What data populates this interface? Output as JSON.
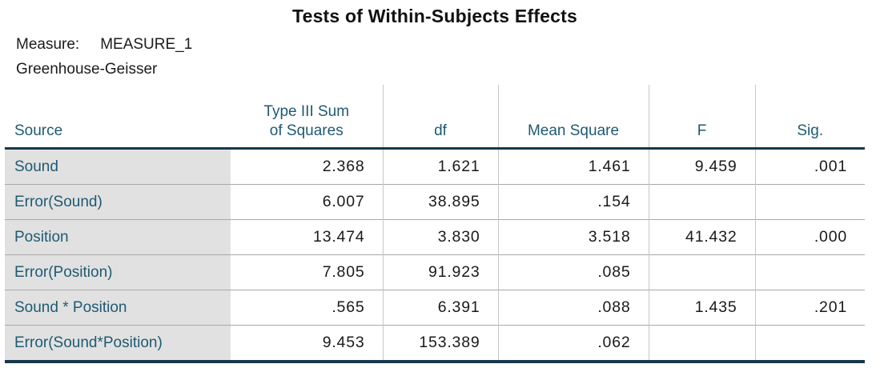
{
  "title": "Tests of Within-Subjects Effects",
  "measure": {
    "label": "Measure:",
    "value": "MEASURE_1"
  },
  "correction": "Greenhouse-Geisser",
  "table": {
    "header": {
      "source": "Source",
      "ss_line1": "Type III Sum",
      "ss_line2": "of Squares",
      "df": "df",
      "mean_square": "Mean Square",
      "f": "F",
      "sig": "Sig."
    },
    "rows": [
      {
        "source": "Sound",
        "ss": "2.368",
        "df": "1.621",
        "mean_square": "1.461",
        "f": "9.459",
        "sig": ".001"
      },
      {
        "source": "Error(Sound)",
        "ss": "6.007",
        "df": "38.895",
        "mean_square": ".154",
        "f": "",
        "sig": ""
      },
      {
        "source": "Position",
        "ss": "13.474",
        "df": "3.830",
        "mean_square": "3.518",
        "f": "41.432",
        "sig": ".000"
      },
      {
        "source": "Error(Position)",
        "ss": "7.805",
        "df": "91.923",
        "mean_square": ".085",
        "f": "",
        "sig": ""
      },
      {
        "source": "Sound * Position",
        "ss": ".565",
        "df": "6.391",
        "mean_square": ".088",
        "f": "1.435",
        "sig": ".201"
      },
      {
        "source": "Error(Sound*Position)",
        "ss": "9.453",
        "df": "153.389",
        "mean_square": ".062",
        "f": "",
        "sig": ""
      }
    ]
  },
  "colors": {
    "header_text": "#1f5a72",
    "row_label_text": "#1f5a72",
    "row_label_background": "#e1e1e1",
    "heavy_border": "#16384a",
    "row_separator": "#a8a8a8",
    "column_separator": "#c6c6c6",
    "value_text": "#1a1a1a",
    "background": "#ffffff"
  }
}
